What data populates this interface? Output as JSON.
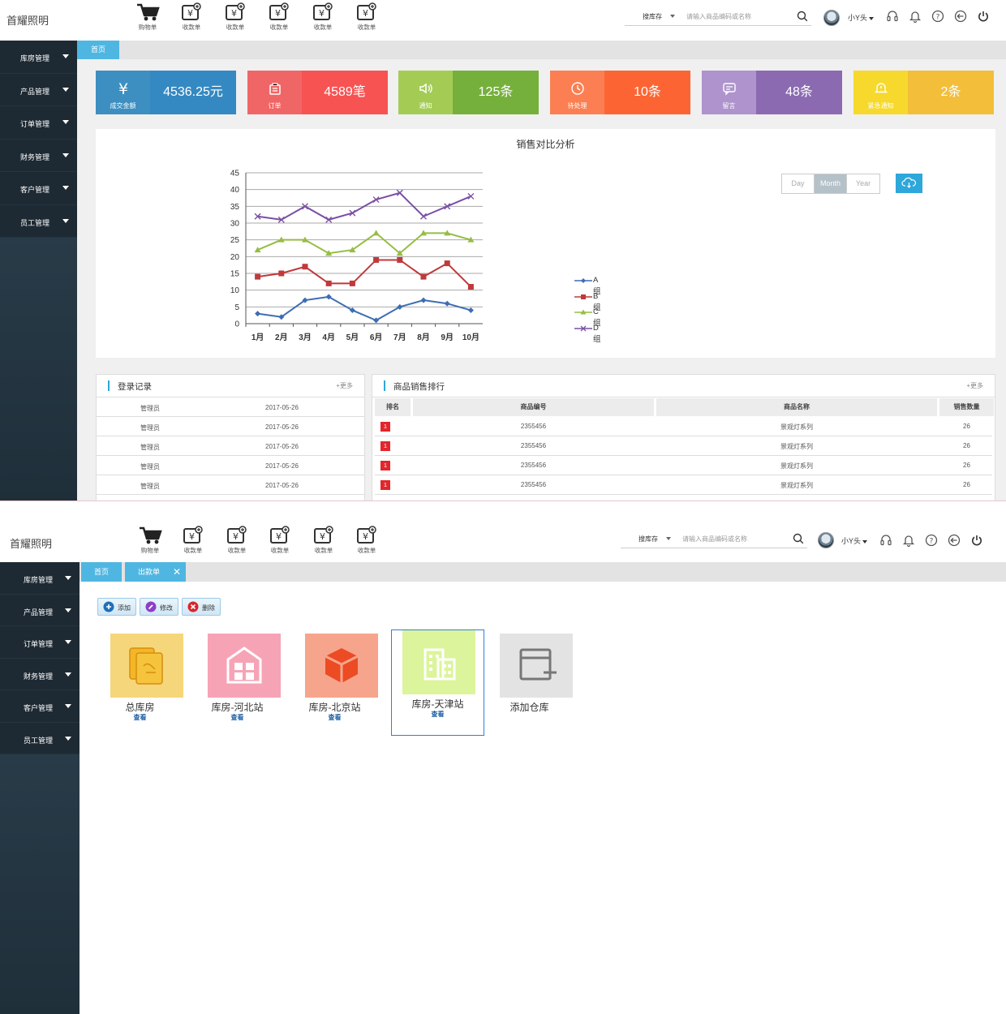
{
  "app": {
    "brand": "首耀照明",
    "quick_links": [
      "购物单",
      "收款单",
      "收款单",
      "收款单",
      "收款单",
      "收款单"
    ],
    "search": {
      "select_label": "搜库存",
      "placeholder": "请输入商品编码或名称"
    },
    "user_name": "小Y头",
    "toolbar_icons": [
      "headset-icon",
      "bell-icon",
      "help-icon",
      "back-icon",
      "power-icon"
    ]
  },
  "sidebar": {
    "items": [
      "库房管理",
      "产品管理",
      "订单管理",
      "财务管理",
      "客户管理",
      "员工管理"
    ]
  },
  "screen1": {
    "tabs": [
      "首页"
    ],
    "stats": [
      {
        "label": "成交金额",
        "value": "4536.25元",
        "icon": "yen-icon",
        "color_left": "#3d8fc1",
        "color_right": "#3589c2"
      },
      {
        "label": "订单",
        "value": "4589笔",
        "icon": "order-icon",
        "color_left": "#f06666",
        "color_right": "#f75353"
      },
      {
        "label": "通知",
        "value": "125条",
        "icon": "speaker-icon",
        "color_left": "#a4cc55",
        "color_right": "#76b03c"
      },
      {
        "label": "待处理",
        "value": "10条",
        "icon": "clock-icon",
        "color_left": "#fb7f52",
        "color_right": "#fc6533"
      },
      {
        "label": "留言",
        "value": "48条",
        "icon": "message-icon",
        "color_left": "#ae93cd",
        "color_right": "#8b6ab1"
      },
      {
        "label": "紧急通知",
        "value": "2条",
        "icon": "alert-icon",
        "color_left": "#f6d92c",
        "color_right": "#f3be3a"
      }
    ],
    "chart_range": {
      "options": [
        "Day",
        "Month",
        "Year"
      ],
      "selected": "Month"
    },
    "chart_data": {
      "type": "line",
      "title": "销售对比分析",
      "categories": [
        "1月",
        "2月",
        "3月",
        "4月",
        "5月",
        "6月",
        "7月",
        "8月",
        "9月",
        "10月"
      ],
      "y_ticks": [
        "0",
        "5",
        "10",
        "15",
        "20",
        "25",
        "30",
        "35",
        "40",
        "45"
      ],
      "ylim": [
        0,
        45
      ],
      "grid": true,
      "legend_position": "right",
      "series": [
        {
          "name": "A组",
          "color": "#3e6db3",
          "marker": "diamond",
          "values": [
            3,
            2,
            7,
            8,
            4,
            1,
            5,
            7,
            6,
            4
          ]
        },
        {
          "name": "B组",
          "color": "#c0393b",
          "marker": "square",
          "values": [
            14,
            15,
            17,
            12,
            12,
            19,
            19,
            14,
            18,
            11
          ]
        },
        {
          "name": "C组",
          "color": "#96bd43",
          "marker": "triangle",
          "values": [
            22,
            25,
            25,
            21,
            22,
            27,
            21,
            27,
            27,
            25
          ]
        },
        {
          "name": "D组",
          "color": "#7a4fa4",
          "marker": "x",
          "values": [
            32,
            31,
            35,
            31,
            33,
            37,
            39,
            32,
            35,
            38
          ]
        }
      ]
    },
    "login_log": {
      "title": "登录记录",
      "more": "+更多",
      "rows": [
        {
          "user": "管理员",
          "date": "2017-05-26"
        },
        {
          "user": "管理员",
          "date": "2017-05-26"
        },
        {
          "user": "管理员",
          "date": "2017-05-26"
        },
        {
          "user": "管理员",
          "date": "2017-05-26"
        },
        {
          "user": "管理员",
          "date": "2017-05-26"
        }
      ]
    },
    "sales_rank": {
      "title": "商品销售排行",
      "more": "+更多",
      "columns": [
        "排名",
        "商品编号",
        "商品名称",
        "销售数量"
      ],
      "rows": [
        {
          "rank": "1",
          "code": "2355456",
          "name": "景观灯系列",
          "qty": "26"
        },
        {
          "rank": "1",
          "code": "2355456",
          "name": "景观灯系列",
          "qty": "26"
        },
        {
          "rank": "1",
          "code": "2355456",
          "name": "景观灯系列",
          "qty": "26"
        },
        {
          "rank": "1",
          "code": "2355456",
          "name": "景观灯系列",
          "qty": "26"
        }
      ]
    }
  },
  "screen2": {
    "tabs": [
      "首页",
      "出款单"
    ],
    "actions": [
      "添加",
      "修改",
      "删除"
    ],
    "warehouses": [
      {
        "name": "总库房",
        "view": "查看",
        "color": "#f6d67a",
        "icon": "books-icon"
      },
      {
        "name": "库房-河北站",
        "view": "查看",
        "color": "#f7a3b6",
        "icon": "warehouse-icon"
      },
      {
        "name": "库房-北京站",
        "view": "查看",
        "color": "#f6a58c",
        "icon": "box-icon"
      },
      {
        "name": "库房-天津站",
        "view": "查看",
        "color": "#dcf49b",
        "icon": "building-icon"
      },
      {
        "name": "添加仓库",
        "view": "",
        "color": "#e3e3e3",
        "icon": "add-warehouse-icon"
      }
    ]
  }
}
